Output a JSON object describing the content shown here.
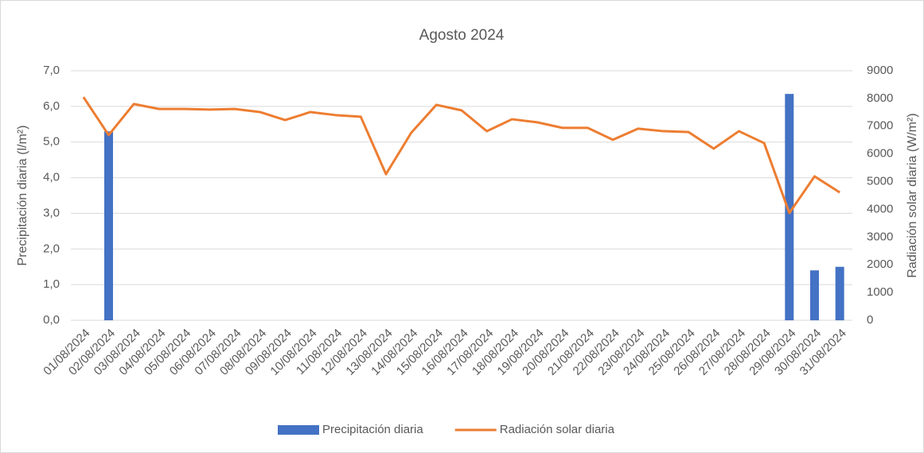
{
  "chart_data": {
    "type": "bar",
    "title": "Agosto 2024",
    "ylabel": "Precipitación diaria (l/m²)",
    "y2label": "Radiación solar diaria (W/m²)",
    "categories": [
      "01/08/2024",
      "02/08/2024",
      "03/08/2024",
      "04/08/2024",
      "05/08/2024",
      "06/08/2024",
      "07/08/2024",
      "08/08/2024",
      "09/08/2024",
      "10/08/2024",
      "11/08/2024",
      "12/08/2024",
      "13/08/2024",
      "14/08/2024",
      "15/08/2024",
      "16/08/2024",
      "17/08/2024",
      "18/08/2024",
      "19/08/2024",
      "20/08/2024",
      "21/08/2024",
      "22/08/2024",
      "23/08/2024",
      "24/08/2024",
      "25/08/2024",
      "26/08/2024",
      "27/08/2024",
      "28/08/2024",
      "29/08/2024",
      "30/08/2024",
      "31/08/2024"
    ],
    "series": [
      {
        "name": "Precipitación diaria",
        "type": "bar",
        "color": "#4472c4",
        "values": [
          0,
          5.3,
          0,
          0,
          0,
          0,
          0,
          0,
          0,
          0,
          0,
          0,
          0,
          0,
          0,
          0,
          0,
          0,
          0,
          0,
          0,
          0,
          0,
          0,
          0,
          0,
          0,
          0,
          6.35,
          1.4,
          1.5
        ]
      },
      {
        "name": "Radiación solar diaria",
        "type": "line",
        "axis": "y2",
        "color": "#ed7d31",
        "values": [
          8050,
          6680,
          7800,
          7620,
          7620,
          7600,
          7620,
          7510,
          7220,
          7510,
          7400,
          7340,
          5270,
          6760,
          7770,
          7570,
          6820,
          7250,
          7140,
          6940,
          6940,
          6510,
          6910,
          6820,
          6790,
          6190,
          6820,
          6390,
          3870,
          5190,
          4610
        ]
      }
    ],
    "ylim": [
      0,
      7
    ],
    "yticks": [
      {
        "value": 0,
        "label": "0,0"
      },
      {
        "value": 1,
        "label": "1,0"
      },
      {
        "value": 2,
        "label": "2,0"
      },
      {
        "value": 3,
        "label": "3,0"
      },
      {
        "value": 4,
        "label": "4,0"
      },
      {
        "value": 5,
        "label": "5,0"
      },
      {
        "value": 6,
        "label": "6,0"
      },
      {
        "value": 7,
        "label": "7,0"
      }
    ],
    "y2lim": [
      0,
      9000
    ],
    "y2ticks": [
      0,
      1000,
      2000,
      3000,
      4000,
      5000,
      6000,
      7000,
      8000,
      9000
    ],
    "grid": true,
    "legend": "bottom"
  }
}
